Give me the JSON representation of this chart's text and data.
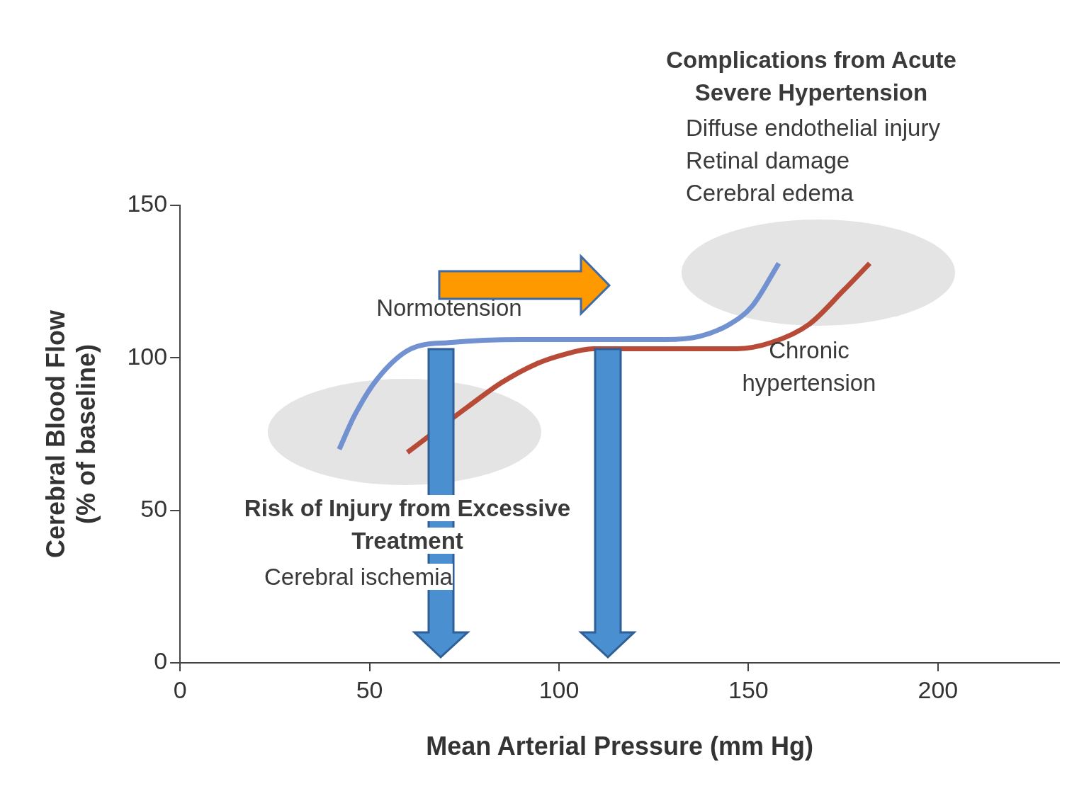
{
  "chart_data": {
    "type": "line",
    "xlabel": "Mean Arterial Pressure (mm Hg)",
    "ylabel": "Cerebral Blood Flow\n(% of baseline)",
    "xlim": [
      0,
      232
    ],
    "xticks": [
      0,
      50,
      100,
      150,
      200
    ],
    "ylim": [
      0,
      150
    ],
    "yticks": [
      0,
      50,
      100,
      150
    ],
    "grid": false,
    "legend": false,
    "marker": "none",
    "line_style": "solid",
    "series": [
      {
        "name": "Normotension",
        "color": "#7191d1",
        "x": [
          42,
          46,
          52,
          61,
          71,
          90,
          109,
          128,
          137,
          145,
          151,
          158
        ],
        "values": [
          70,
          81,
          93,
          103,
          105,
          106,
          106,
          106,
          107,
          111,
          117,
          131
        ]
      },
      {
        "name": "Chronic hypertension",
        "color": "#b84a38",
        "x": [
          60,
          76,
          85,
          94,
          101,
          109,
          128,
          147,
          156,
          166,
          175,
          182
        ],
        "values": [
          69,
          84,
          92,
          98,
          101,
          103,
          103,
          103,
          105,
          111,
          122,
          131
        ]
      }
    ],
    "annotations": [
      "Complications from Acute Severe Hypertension",
      "Diffuse endothelial injury\nRetinal damage\nCerebral edema",
      "Risk of Injury from Excessive Treatment",
      "Cerebral ischemia"
    ]
  }
}
